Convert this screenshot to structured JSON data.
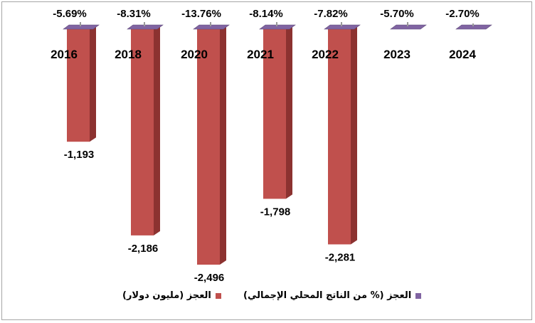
{
  "chart_data": {
    "type": "bar",
    "categories": [
      "2016",
      "2018",
      "2020",
      "2021",
      "2022",
      "2023",
      "2024"
    ],
    "series": [
      {
        "name": "العجز (مليون دولار)",
        "values": [
          -1193,
          -2186,
          -2496,
          -1798,
          -2281,
          null,
          null
        ],
        "labels": [
          "-1,193",
          "-2,186",
          "-2,496",
          "-1,798",
          "-2,281",
          "",
          ""
        ],
        "color": "#c0504d"
      },
      {
        "name": "العجز (% من الناتج المحلي الإجمالي)",
        "values": [
          -5.69,
          -8.31,
          -13.76,
          -8.14,
          -7.82,
          -5.7,
          -2.7
        ],
        "labels": [
          "-5.69%",
          "-8.31%",
          "-13.76%",
          "-8.14%",
          "-7.82%",
          "-5.70%",
          "-2.70%"
        ],
        "color": "#8064a2"
      }
    ],
    "legend": [
      "العجز (مليون دولار)",
      "العجز (% من الناتج المحلي الإجمالي)"
    ],
    "legend_position": "bottom",
    "grid": false
  }
}
